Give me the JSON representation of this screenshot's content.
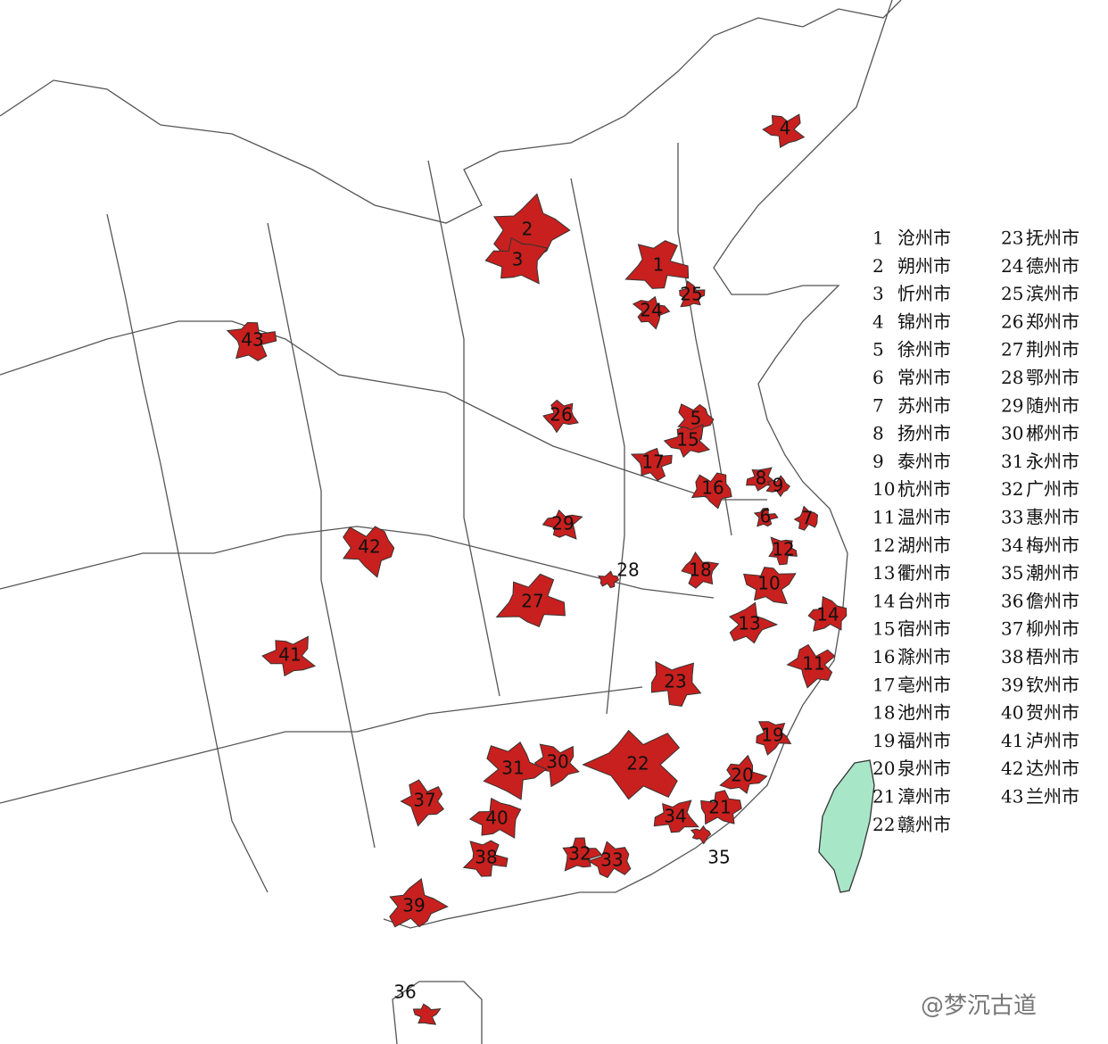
{
  "regions": [
    {
      "number": "1",
      "name": "沧州市"
    },
    {
      "number": "2",
      "name": "朔州市"
    },
    {
      "number": "3",
      "name": "忻州市"
    },
    {
      "number": "4",
      "name": "锦州市"
    },
    {
      "number": "5",
      "name": "徐州市"
    },
    {
      "number": "6",
      "name": "常州市"
    },
    {
      "number": "7",
      "name": "苏州市"
    },
    {
      "number": "8",
      "name": "扬州市"
    },
    {
      "number": "9",
      "name": "泰州市"
    },
    {
      "number": "10",
      "name": "杭州市"
    },
    {
      "number": "11",
      "name": "温州市"
    },
    {
      "number": "12",
      "name": "湖州市"
    },
    {
      "number": "13",
      "name": "衢州市"
    },
    {
      "number": "14",
      "name": "台州市"
    },
    {
      "number": "15",
      "name": "宿州市"
    },
    {
      "number": "16",
      "name": "滁州市"
    },
    {
      "number": "17",
      "name": "亳州市"
    },
    {
      "number": "18",
      "name": "池州市"
    },
    {
      "number": "19",
      "name": "福州市"
    },
    {
      "number": "20",
      "name": "泉州市"
    },
    {
      "number": "21",
      "name": "漳州市"
    },
    {
      "number": "22",
      "name": "赣州市"
    },
    {
      "number": "23",
      "name": "抚州市"
    },
    {
      "number": "24",
      "name": "德州市"
    },
    {
      "number": "25",
      "name": "滨州市"
    },
    {
      "number": "26",
      "name": "郑州市"
    },
    {
      "number": "27",
      "name": "荆州市"
    },
    {
      "number": "28",
      "name": "鄂州市"
    },
    {
      "number": "29",
      "name": "随州市"
    },
    {
      "number": "30",
      "name": "郴州市"
    },
    {
      "number": "31",
      "name": "永州市"
    },
    {
      "number": "32",
      "name": "广州市"
    },
    {
      "number": "33",
      "name": "惠州市"
    },
    {
      "number": "34",
      "name": "梅州市"
    },
    {
      "number": "35",
      "name": "潮州市"
    },
    {
      "number": "36",
      "name": "儋州市"
    },
    {
      "number": "37",
      "name": "柳州市"
    },
    {
      "number": "38",
      "name": "梧州市"
    },
    {
      "number": "39",
      "name": "钦州市"
    },
    {
      "number": "40",
      "name": "贺州市"
    },
    {
      "number": "41",
      "name": "泸州市"
    },
    {
      "number": "42",
      "name": "达州市"
    },
    {
      "number": "43",
      "name": "兰州市"
    }
  ],
  "watermark": "@梦沉古道"
}
